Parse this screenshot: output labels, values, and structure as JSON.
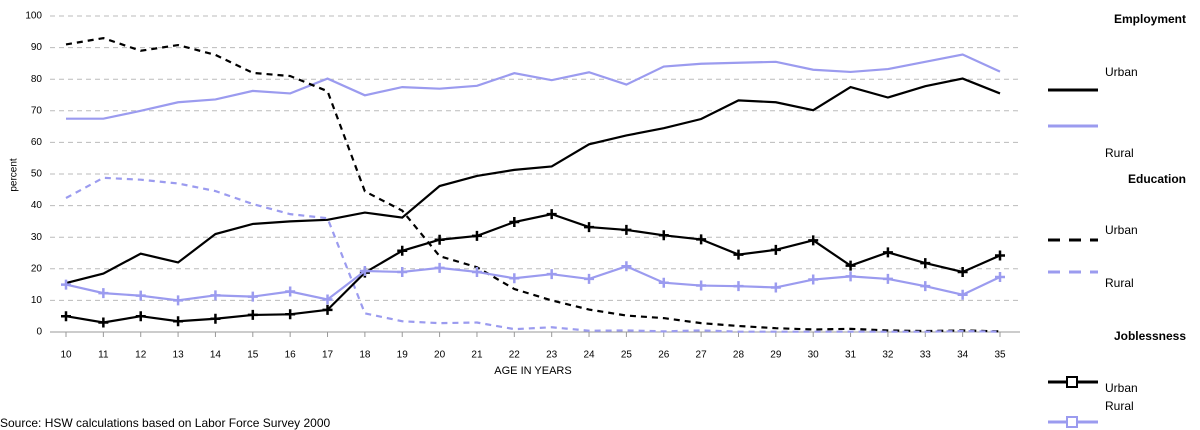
{
  "chart_data": {
    "type": "line",
    "y_label": "percent",
    "x_label": "AGE IN YEARS",
    "source": "Source: HSW calculations based on Labor Force Survey 2000",
    "x": [
      10,
      11,
      12,
      13,
      14,
      15,
      16,
      17,
      18,
      19,
      20,
      21,
      22,
      23,
      24,
      25,
      26,
      27,
      28,
      29,
      30,
      31,
      32,
      33,
      34,
      35
    ],
    "xlim": [
      10,
      35
    ],
    "xticks": [
      10,
      11,
      12,
      13,
      14,
      15,
      16,
      17,
      18,
      19,
      20,
      21,
      22,
      23,
      24,
      25,
      26,
      27,
      28,
      29,
      30,
      31,
      32,
      33,
      34,
      35
    ],
    "ylim": [
      0,
      100
    ],
    "yticks": [
      0,
      10,
      20,
      30,
      40,
      50,
      60,
      70,
      80,
      90,
      100
    ],
    "grid": true,
    "legend_groups": [
      "Employment",
      "Education",
      "Joblessness"
    ],
    "series": [
      {
        "name": "Urban",
        "group": 0,
        "style": "solid",
        "color": "#000000",
        "values": [
          15.5,
          18.5,
          24.8,
          22,
          31,
          34.2,
          35,
          35.5,
          37.8,
          36.2,
          46.2,
          49.4,
          51.3,
          52.4,
          59.4,
          62.2,
          64.5,
          67.4,
          73.3,
          72.7,
          70.2,
          77.5,
          74.2,
          77.8,
          80.2,
          75.5
        ]
      },
      {
        "name": "Rural",
        "group": 0,
        "style": "solid",
        "color": "#9b9bef",
        "values": [
          67.5,
          67.5,
          70,
          72.7,
          73.6,
          76.3,
          75.5,
          80.2,
          74.9,
          77.5,
          77,
          77.9,
          81.9,
          79.7,
          82.2,
          78.3,
          84,
          84.9,
          85.2,
          85.5,
          83,
          82.3,
          83.2,
          85.5,
          87.8,
          82.4
        ]
      },
      {
        "name": "Urban",
        "group": 1,
        "style": "dashed",
        "color": "#000000",
        "values": [
          91,
          93,
          89,
          90.8,
          87.7,
          82,
          81,
          76.2,
          44.5,
          38.4,
          24,
          20.5,
          13.6,
          10,
          7.1,
          5.2,
          4.4,
          2.8,
          1.9,
          1.2,
          0.8,
          1,
          0.5,
          0.3,
          0.5,
          0.2
        ]
      },
      {
        "name": "Rural",
        "group": 1,
        "style": "dashed",
        "color": "#9b9bef",
        "values": [
          42.4,
          48.8,
          48.2,
          47,
          44.6,
          40.5,
          37.3,
          36,
          5.9,
          3.4,
          2.8,
          3,
          0.9,
          1.5,
          0.4,
          0.5,
          0.2,
          0.5,
          0.1,
          0.1,
          0.1,
          0.1,
          0.1,
          0.1,
          0.3,
          0.1
        ]
      },
      {
        "name": "Urban",
        "group": 2,
        "style": "marker",
        "color": "#000000",
        "values": [
          5,
          3,
          5,
          3.4,
          4.2,
          5.4,
          5.6,
          7,
          18.8,
          25.7,
          29.2,
          30.4,
          34.8,
          37.3,
          33.2,
          32.3,
          30.6,
          29.3,
          24.5,
          26,
          29,
          21,
          25.2,
          21.8,
          19,
          24.2
        ]
      },
      {
        "name": "Rural",
        "group": 2,
        "style": "marker",
        "color": "#9b9bef",
        "values": [
          15,
          12.3,
          11.5,
          10,
          11.6,
          11.2,
          12.8,
          10.3,
          19.3,
          19,
          20.3,
          19,
          17,
          18.3,
          16.8,
          20.8,
          15.6,
          14.7,
          14.5,
          14.1,
          16.6,
          17.6,
          16.8,
          14.5,
          11.8,
          17.4
        ]
      }
    ]
  }
}
